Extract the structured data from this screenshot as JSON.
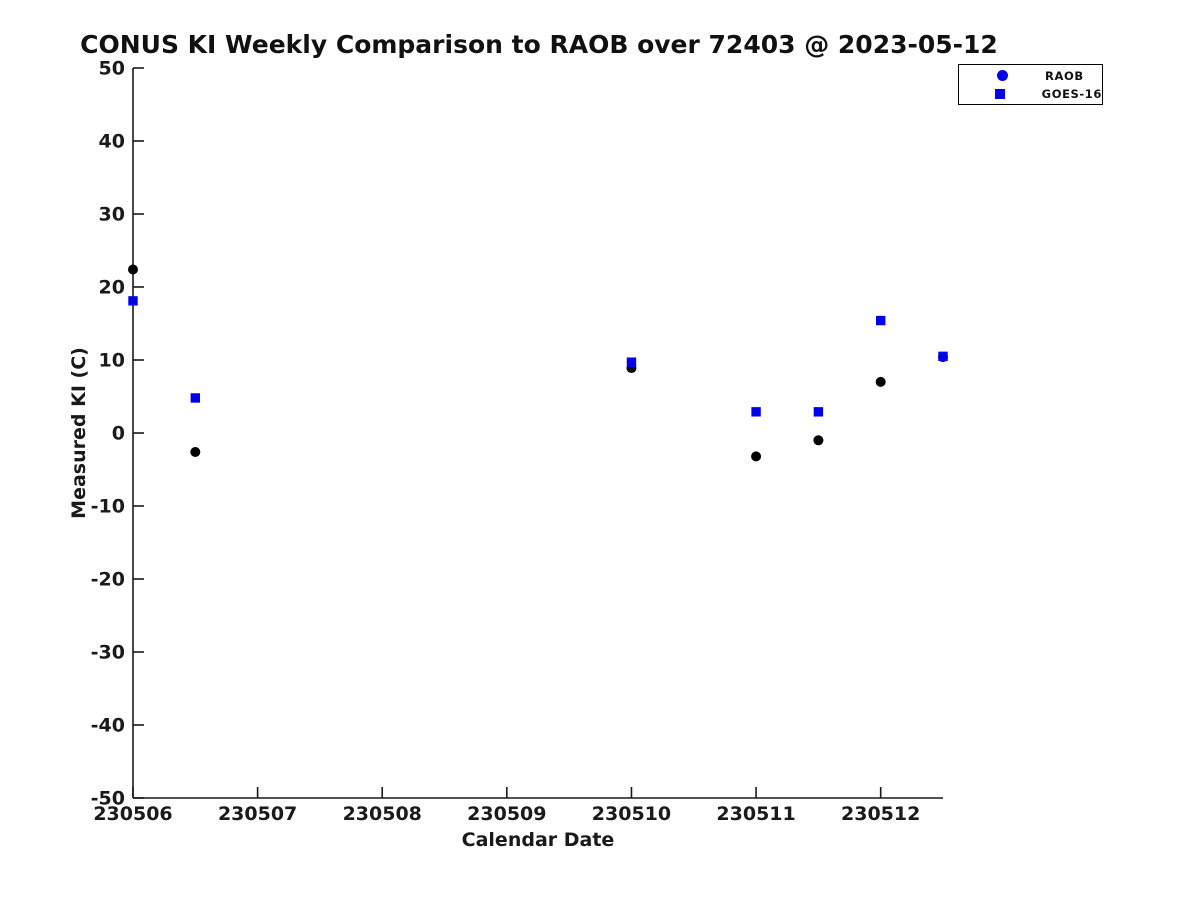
{
  "chart_data": {
    "type": "scatter",
    "title": "CONUS KI Weekly Comparison to RAOB over 72403 @ 2023-05-12",
    "xlabel": "Calendar Date",
    "ylabel": "Measured KI (C)",
    "xlim": [
      230506,
      230512.5
    ],
    "ylim": [
      -50,
      50
    ],
    "x_ticks": [
      230506,
      230507,
      230508,
      230509,
      230510,
      230511,
      230512
    ],
    "y_ticks": [
      50,
      40,
      30,
      20,
      10,
      0,
      -10,
      -20,
      -30,
      -40,
      -50
    ],
    "grid": false,
    "axis_color": "#1a1a1a",
    "legend": {
      "position": "top-right",
      "entries": [
        {
          "label": "RAOB",
          "marker": "circle-icon",
          "color": "#0000ee"
        },
        {
          "label": "GOES-16",
          "marker": "square-icon",
          "color": "#0000ee"
        }
      ]
    },
    "series": [
      {
        "name": "RAOB",
        "marker": "circle",
        "color": "#000000",
        "points": [
          [
            230506,
            22.4
          ],
          [
            230506.5,
            -2.6
          ],
          [
            230510,
            8.9
          ],
          [
            230511,
            -3.2
          ],
          [
            230511.5,
            -1.0
          ],
          [
            230512,
            7.0
          ],
          [
            230512.5,
            10.4
          ]
        ]
      },
      {
        "name": "GOES-16",
        "marker": "square",
        "color": "#0000ee",
        "points": [
          [
            230506,
            18.1
          ],
          [
            230506.5,
            4.8
          ],
          [
            230510,
            9.7
          ],
          [
            230511,
            2.9
          ],
          [
            230511.5,
            2.9
          ],
          [
            230512,
            15.4
          ],
          [
            230512.5,
            10.5
          ]
        ]
      }
    ]
  }
}
